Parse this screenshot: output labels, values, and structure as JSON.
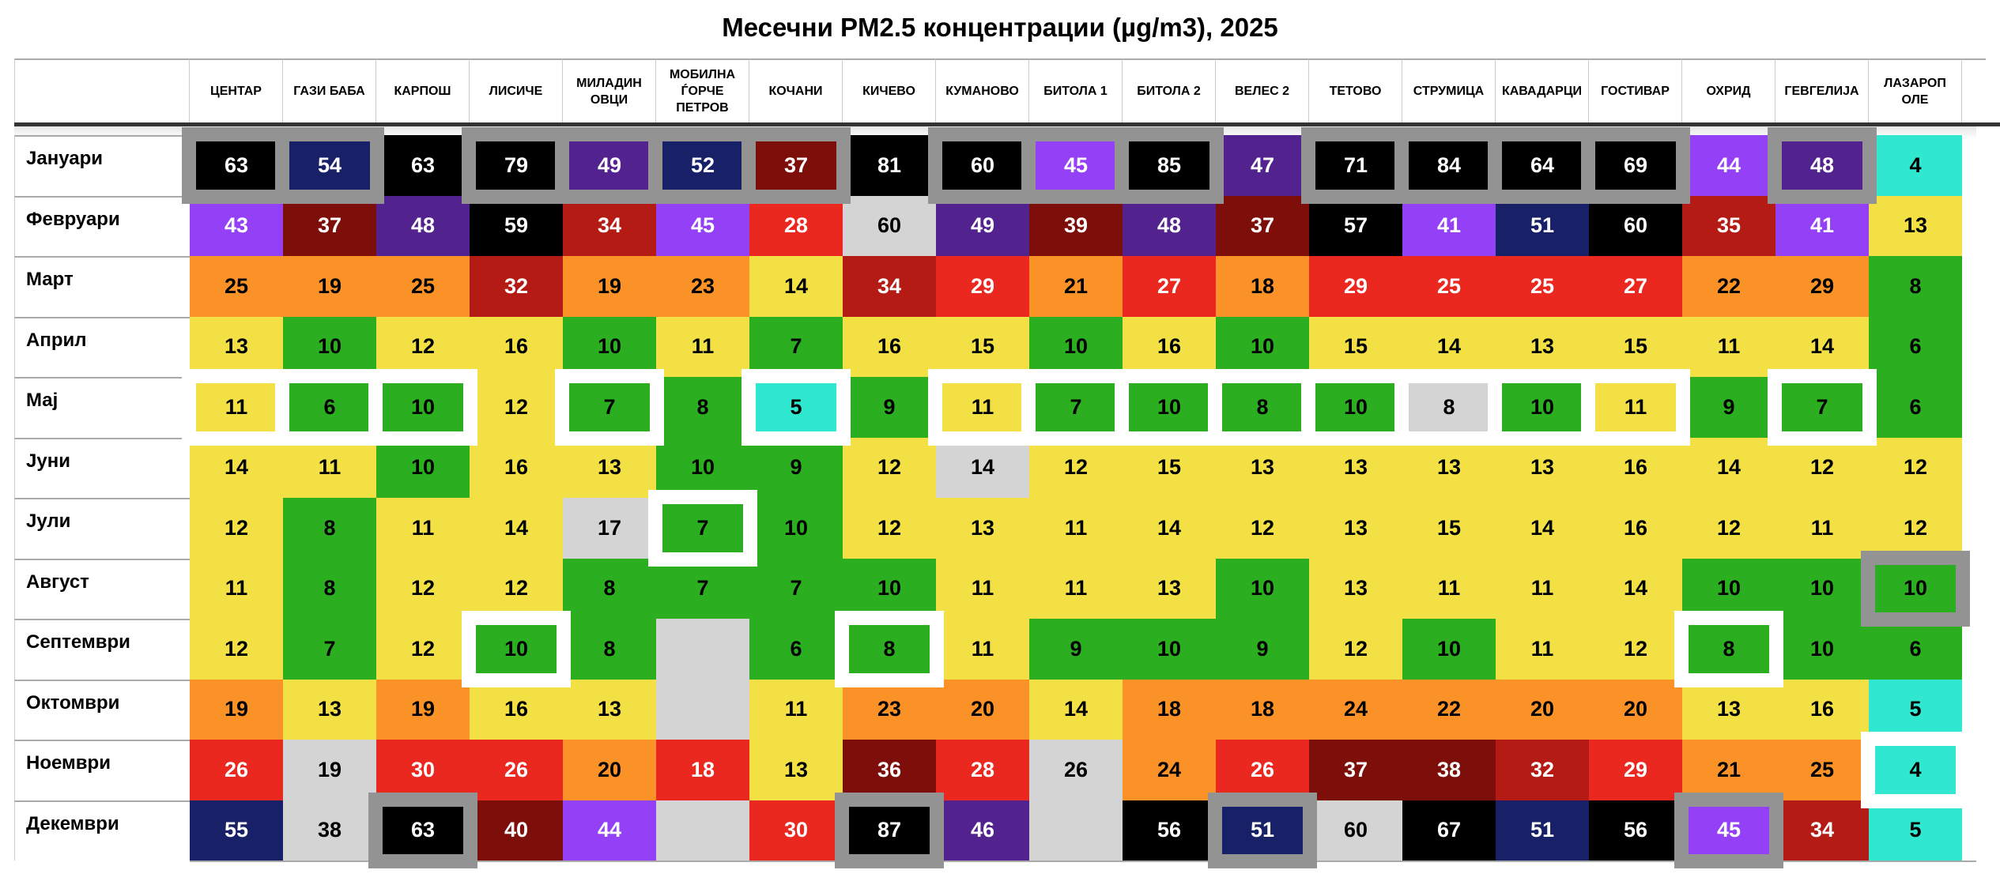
{
  "chart_data": {
    "type": "heatmap",
    "title": "Месечни PM2.5 концентрации (µg/m3), 2025",
    "columns": [
      "ЦЕНТАР",
      "ГАЗИ БАБА",
      "КАРПОШ",
      "ЛИСИЧЕ",
      "МИЛАДИН ОВЦИ",
      "МОБИЛНА ЃОРЧЕ ПЕТРОВ",
      "КОЧАНИ",
      "КИЧЕВО",
      "КУМАНОВО",
      "БИТОЛА 1",
      "БИТОЛА 2",
      "ВЕЛЕС 2",
      "ТЕТОВО",
      "СТРУМИЦА",
      "КАВАДАРЦИ",
      "ГОСТИВАР",
      "ОХРИД",
      "ГЕВГЕЛИЈА",
      "ЛАЗАРОП ОЛЕ"
    ],
    "palette": {
      "K": "#000000",
      "N": "#182068",
      "P": "#52228f",
      "V": "#9440f6",
      "D": "#7e0e09",
      "B": "#b31b14",
      "R": "#ea2820",
      "O": "#fb9227",
      "Y": "#f3e044",
      "G": "#2bae20",
      "C": "#30e7d0",
      "S": "#d4d4d4"
    },
    "frame_colors": {
      "max": "#939393",
      "min": "#ffffff"
    },
    "rows": [
      {
        "month": "Јануари",
        "values": [
          63,
          54,
          63,
          79,
          49,
          52,
          37,
          81,
          60,
          45,
          85,
          47,
          71,
          84,
          64,
          69,
          44,
          48,
          4
        ],
        "colors": "KNKKPNDKKVKPKKKKVPC",
        "frames": "mm.mmmm.mmm.mmmm.m."
      },
      {
        "month": "Февруари",
        "values": [
          43,
          37,
          48,
          59,
          34,
          45,
          28,
          60,
          49,
          39,
          48,
          37,
          57,
          41,
          51,
          60,
          35,
          41,
          13
        ],
        "colors": "VDPKBVRSPDPDKVNKBVY",
        "frames": "..................."
      },
      {
        "month": "Март",
        "values": [
          25,
          19,
          25,
          32,
          19,
          23,
          14,
          34,
          29,
          21,
          27,
          18,
          29,
          25,
          25,
          27,
          22,
          29,
          8
        ],
        "colors": "OOOBOOYBRORORRRROOG",
        "frames": "..................."
      },
      {
        "month": "Април",
        "values": [
          13,
          10,
          12,
          16,
          10,
          11,
          7,
          16,
          15,
          10,
          16,
          10,
          15,
          14,
          13,
          15,
          11,
          14,
          6
        ],
        "colors": "YGYYGYGYYGYGYYYYYYG",
        "frames": "..................."
      },
      {
        "month": "Мај",
        "values": [
          11,
          6,
          10,
          12,
          7,
          8,
          5,
          9,
          11,
          7,
          10,
          8,
          10,
          8,
          10,
          11,
          9,
          7,
          6
        ],
        "colors": "YGGYGGCGYGGGGSGYGGG",
        "frames": "nnn.n.n.nnnnnnnn.n."
      },
      {
        "month": "Јуни",
        "values": [
          14,
          11,
          10,
          16,
          13,
          10,
          9,
          12,
          14,
          12,
          15,
          13,
          13,
          13,
          13,
          16,
          14,
          12,
          12
        ],
        "colors": "YYGYYGGYSYYYYYYYYYY",
        "frames": "..................."
      },
      {
        "month": "Јули",
        "values": [
          12,
          8,
          11,
          14,
          17,
          7,
          10,
          12,
          13,
          11,
          14,
          12,
          13,
          15,
          14,
          16,
          12,
          11,
          12
        ],
        "colors": "YGYYSGGYYYYYYYYYYYY",
        "frames": ".....n............."
      },
      {
        "month": "Август",
        "values": [
          11,
          8,
          12,
          12,
          8,
          7,
          7,
          10,
          11,
          11,
          13,
          10,
          13,
          11,
          11,
          14,
          10,
          10,
          10
        ],
        "colors": "YGYYGGGGYYYGYYYYGGG",
        "frames": "..................m"
      },
      {
        "month": "Септември",
        "values": [
          12,
          7,
          12,
          10,
          8,
          null,
          6,
          8,
          11,
          9,
          10,
          9,
          12,
          10,
          11,
          12,
          8,
          10,
          6
        ],
        "colors": "YGYGGSGGYGGGYGYYGGG",
        "frames": "...n...n........n.."
      },
      {
        "month": "Октомври",
        "values": [
          19,
          13,
          19,
          16,
          13,
          null,
          11,
          23,
          20,
          14,
          18,
          18,
          24,
          22,
          20,
          20,
          13,
          16,
          5
        ],
        "colors": "OYOYYSYOOYOOOOOOYYC",
        "frames": "..................."
      },
      {
        "month": "Ноември",
        "values": [
          26,
          19,
          30,
          26,
          20,
          18,
          13,
          36,
          28,
          26,
          24,
          26,
          37,
          38,
          32,
          29,
          21,
          25,
          4
        ],
        "colors": "RSRRORYDRSORDDBROOC",
        "frames": "..................n"
      },
      {
        "month": "Декември",
        "values": [
          55,
          38,
          63,
          40,
          44,
          null,
          30,
          87,
          46,
          null,
          56,
          51,
          60,
          67,
          51,
          56,
          45,
          34,
          5
        ],
        "colors": "NSKDVSRKPSKNSKNKVBC",
        "frames": "..m....m...m....m.."
      }
    ]
  }
}
